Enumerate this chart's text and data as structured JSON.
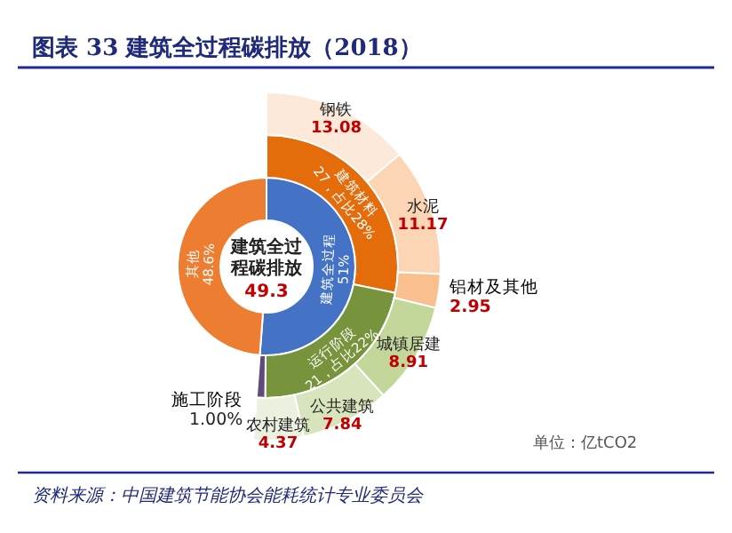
{
  "chart_data": [
    {
      "type": "donut",
      "title": "图表 33  建筑全过程碳排放（2018）",
      "categories": [
        "建筑全过程",
        "其他"
      ],
      "values": [
        51,
        48.6
      ],
      "value_labels": [
        "51%",
        "48.6%"
      ],
      "colors": [
        "#4472c4",
        "#ed7d31"
      ],
      "annotations": [
        "建筑全过程碳排放",
        "49.3"
      ]
    },
    {
      "type": "donut",
      "categories": [
        "建筑材料",
        "运行阶段",
        "施工阶段"
      ],
      "values": [
        27,
        21,
        1
      ],
      "value_labels": [
        "27，占比28%",
        "21，占比22%",
        "1.00%"
      ],
      "colors": [
        "#e46c0a",
        "#77933c",
        "#604a7b"
      ]
    },
    {
      "type": "donut",
      "categories": [
        "钢铁",
        "水泥",
        "铝材及其他",
        "城镇居建",
        "公共建筑",
        "农村建筑"
      ],
      "values": [
        13.08,
        11.17,
        2.95,
        8.91,
        7.84,
        4.37
      ],
      "data_labels": true,
      "colors": [
        "#fde9d9",
        "#fcd5b4",
        "#fabf8f",
        "#c4d79b",
        "#d8e4bc",
        "#ebf1de"
      ],
      "annotations": [
        "单位：亿tCO2",
        "资料来源：中国建筑节能协会能耗统计专业委员会"
      ]
    }
  ]
}
